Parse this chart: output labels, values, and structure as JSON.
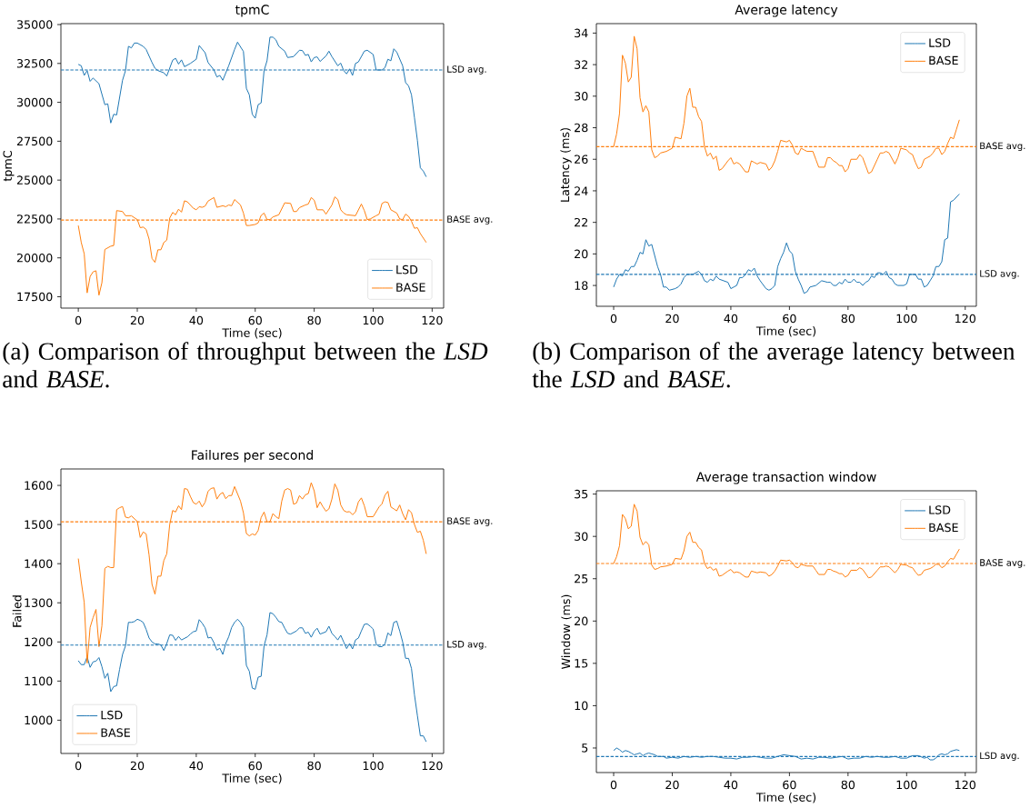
{
  "chart_data": [
    {
      "type": "line",
      "title": "tpmC",
      "xlabel": "Time (sec)",
      "ylabel": "tpmC",
      "xlim": [
        -5.9,
        123.9
      ],
      "ylim": [
        16770,
        35060
      ],
      "xticks": [
        0,
        20,
        40,
        60,
        80,
        100,
        120
      ],
      "yticks": [
        17500,
        20000,
        22500,
        25000,
        27500,
        30000,
        32500,
        35000
      ],
      "legend": "bottom right",
      "line_style": "solid",
      "marker": "none",
      "annotations": [
        "(a) Comparison of throughput between the *LSD* and *BASE*."
      ],
      "ref_lines": [
        {
          "axis": "y",
          "value": 32080,
          "label": "LSD avg.",
          "color": "#1f77b4",
          "line_style": "dashed"
        },
        {
          "axis": "y",
          "value": 22430,
          "label": "BASE avg.",
          "color": "#ff7f0e",
          "line_style": "dashed"
        }
      ],
      "series": [
        {
          "name": "LSD",
          "color": "#1f77b4",
          "x": [
            0,
            1,
            2,
            3,
            4,
            5,
            7,
            9,
            10,
            11,
            12,
            13,
            15,
            16,
            17,
            18,
            19,
            20,
            22,
            23,
            25,
            26,
            27,
            29,
            30,
            32,
            33,
            34,
            35,
            36,
            38,
            40,
            41,
            43,
            44,
            46,
            47,
            48,
            49,
            51,
            53,
            54,
            56,
            57,
            58,
            59,
            60,
            61,
            62,
            63,
            64,
            65,
            66,
            67,
            68,
            70,
            71,
            73,
            75,
            76,
            77,
            78,
            79,
            80,
            81,
            82,
            84,
            85,
            86,
            88,
            89,
            90,
            91,
            92,
            93,
            94,
            95,
            97,
            98,
            100,
            101,
            103,
            104,
            105,
            106,
            107,
            108,
            110,
            111,
            112,
            113,
            114,
            115,
            116,
            117,
            118
          ],
          "values": [
            32440,
            32350,
            31730,
            32040,
            31350,
            31560,
            31200,
            29850,
            29900,
            28670,
            29230,
            29190,
            31420,
            32040,
            33600,
            33500,
            33810,
            33810,
            33600,
            33400,
            32560,
            32190,
            32040,
            31900,
            31690,
            32710,
            32830,
            32460,
            32730,
            32290,
            32500,
            32770,
            33650,
            33190,
            32560,
            32080,
            31630,
            31730,
            31420,
            32350,
            33400,
            33870,
            33270,
            30900,
            30480,
            29230,
            28980,
            29850,
            29960,
            32040,
            32670,
            34190,
            34190,
            34020,
            33600,
            33290,
            32880,
            32940,
            33350,
            33330,
            33020,
            33080,
            32600,
            32880,
            32920,
            32630,
            32980,
            33290,
            32940,
            32350,
            32520,
            32040,
            31830,
            32150,
            31730,
            32500,
            32600,
            33290,
            33350,
            33080,
            32080,
            32080,
            32230,
            32770,
            32670,
            33440,
            33230,
            32350,
            31270,
            31060,
            30480,
            29020,
            27560,
            25790,
            25580,
            25210
          ]
        },
        {
          "name": "BASE",
          "color": "#ff7f0e",
          "x": [
            0,
            1,
            2,
            3,
            4,
            5,
            6,
            7,
            8,
            9,
            11,
            12,
            13,
            15,
            16,
            18,
            20,
            21,
            22,
            23,
            24,
            25,
            26,
            27,
            28,
            29,
            30,
            31,
            32,
            33,
            34,
            35,
            36,
            37,
            39,
            40,
            41,
            42,
            43,
            44,
            46,
            47,
            49,
            50,
            51,
            52,
            53,
            55,
            56,
            57,
            58,
            60,
            61,
            62,
            63,
            64,
            65,
            66,
            68,
            70,
            72,
            73,
            74,
            75,
            77,
            78,
            79,
            80,
            81,
            83,
            84,
            86,
            87,
            88,
            89,
            90,
            91,
            94,
            96,
            97,
            98,
            99,
            101,
            102,
            103,
            104,
            105,
            106,
            108,
            109,
            110,
            111,
            112,
            113,
            114,
            115,
            116,
            118
          ],
          "values": [
            22080,
            20990,
            20260,
            17750,
            18800,
            19100,
            19170,
            17600,
            18400,
            20540,
            20750,
            20790,
            23040,
            22980,
            22710,
            22710,
            22460,
            21940,
            21980,
            21830,
            21210,
            19960,
            19710,
            20520,
            20520,
            20990,
            21140,
            22560,
            22920,
            22770,
            23130,
            22940,
            23670,
            23600,
            23190,
            23090,
            23290,
            23250,
            23330,
            23650,
            23880,
            23250,
            23350,
            23290,
            23400,
            23350,
            23750,
            23400,
            22880,
            22080,
            22080,
            22150,
            22250,
            22730,
            22880,
            22460,
            22460,
            22630,
            22770,
            23540,
            23500,
            22980,
            22980,
            23230,
            23400,
            23460,
            23880,
            23710,
            23090,
            23090,
            22810,
            23400,
            23920,
            23750,
            23090,
            22880,
            22770,
            22710,
            23460,
            23040,
            22460,
            22500,
            22710,
            22810,
            23500,
            23600,
            23560,
            23090,
            22880,
            22500,
            22460,
            22810,
            22670,
            22350,
            21900,
            21940,
            21560,
            20990
          ]
        }
      ]
    },
    {
      "type": "line",
      "title": "Average latency",
      "xlabel": "Time (sec)",
      "ylabel": "Latency (ms)",
      "xlim": [
        -5.9,
        123.8
      ],
      "ylim": [
        16.68,
        34.6
      ],
      "xticks": [
        0,
        20,
        40,
        60,
        80,
        100,
        120
      ],
      "yticks": [
        18,
        20,
        22,
        24,
        26,
        28,
        30,
        32,
        34
      ],
      "legend": "top right",
      "line_style": "solid",
      "marker": "none",
      "annotations": [
        "(b) Comparison of the average latency between the *LSD* and *BASE*."
      ],
      "ref_lines": [
        {
          "axis": "y",
          "value": 26.8,
          "label": "BASE avg.",
          "color": "#ff7f0e",
          "line_style": "dashed"
        },
        {
          "axis": "y",
          "value": 18.7,
          "label": "LSD avg.",
          "color": "#1f77b4",
          "line_style": "dashed"
        }
      ],
      "series": [
        {
          "name": "LSD",
          "color": "#1f77b4",
          "x": [
            0,
            1,
            2,
            3,
            4,
            5,
            6,
            7,
            8,
            9,
            10,
            11,
            12,
            13,
            15,
            16,
            17,
            18,
            19,
            21,
            22,
            23,
            24,
            25,
            26,
            27,
            29,
            30,
            31,
            32,
            33,
            34,
            35,
            36,
            39,
            40,
            41,
            42,
            43,
            44,
            45,
            46,
            47,
            48,
            49,
            50,
            52,
            53,
            54,
            55,
            56,
            57,
            58,
            59,
            60,
            61,
            62,
            63,
            64,
            65,
            66,
            67,
            69,
            71,
            73,
            74,
            75,
            76,
            77,
            78,
            79,
            80,
            81,
            82,
            83,
            84,
            85,
            86,
            87,
            88,
            89,
            90,
            91,
            92,
            93,
            94,
            95,
            96,
            97,
            99,
            100,
            101,
            102,
            103,
            104,
            105,
            106,
            107,
            108,
            109,
            110,
            111,
            112,
            113,
            114,
            115,
            116,
            118
          ],
          "values": [
            17.9,
            18.4,
            18.7,
            18.6,
            19.0,
            18.9,
            19.2,
            19.2,
            19.6,
            20.1,
            20.0,
            20.9,
            20.5,
            20.6,
            19.2,
            18.7,
            17.9,
            17.9,
            17.7,
            17.8,
            17.9,
            18.1,
            18.5,
            18.7,
            18.7,
            18.7,
            18.9,
            18.7,
            18.3,
            18.2,
            18.4,
            18.3,
            18.6,
            18.4,
            18.2,
            17.8,
            17.9,
            18.0,
            18.5,
            18.5,
            18.7,
            19.0,
            18.9,
            19.1,
            18.6,
            18.3,
            17.8,
            17.7,
            17.8,
            18.0,
            19.2,
            19.7,
            20.1,
            20.7,
            20.2,
            20.0,
            18.9,
            18.4,
            18.0,
            17.5,
            17.6,
            17.9,
            18.0,
            18.3,
            18.2,
            18.2,
            18.0,
            18.0,
            18.2,
            18.1,
            18.4,
            18.2,
            18.2,
            18.4,
            18.2,
            18.2,
            18.0,
            18.2,
            18.3,
            18.6,
            18.5,
            18.8,
            18.8,
            18.7,
            18.9,
            18.5,
            18.4,
            18.1,
            18.0,
            18.0,
            18.1,
            18.7,
            18.7,
            18.7,
            18.4,
            18.4,
            17.9,
            18.0,
            18.3,
            18.6,
            19.2,
            19.2,
            19.5,
            20.9,
            21.0,
            23.3,
            23.4,
            23.8
          ]
        },
        {
          "name": "BASE",
          "color": "#ff7f0e",
          "x": [
            0,
            1,
            2,
            3,
            4,
            5,
            6,
            7,
            8,
            9,
            10,
            11,
            12,
            13,
            14,
            15,
            16,
            18,
            20,
            21,
            23,
            24,
            25,
            26,
            27,
            28,
            29,
            30,
            31,
            32,
            33,
            34,
            35,
            36,
            37,
            39,
            40,
            41,
            42,
            43,
            45,
            46,
            47,
            48,
            49,
            50,
            52,
            53,
            54,
            55,
            56,
            57,
            59,
            60,
            61,
            62,
            63,
            64,
            65,
            66,
            68,
            69,
            70,
            72,
            73,
            74,
            75,
            76,
            77,
            78,
            79,
            80,
            81,
            83,
            84,
            85,
            86,
            87,
            88,
            90,
            91,
            92,
            93,
            94,
            96,
            97,
            98,
            100,
            101,
            102,
            103,
            104,
            105,
            106,
            107,
            108,
            109,
            110,
            111,
            112,
            113,
            114,
            115,
            116,
            117,
            118
          ],
          "values": [
            26.8,
            27.6,
            28.9,
            32.6,
            32.1,
            30.9,
            31.2,
            33.8,
            33.0,
            29.9,
            29.0,
            29.4,
            29.0,
            26.6,
            26.1,
            26.2,
            26.4,
            26.5,
            26.7,
            27.4,
            27.3,
            28.3,
            30.0,
            30.5,
            29.3,
            29.3,
            28.7,
            28.4,
            26.8,
            26.2,
            26.4,
            26.0,
            26.2,
            25.3,
            25.4,
            25.9,
            26.1,
            25.7,
            25.8,
            25.7,
            25.2,
            25.2,
            25.9,
            25.8,
            25.7,
            25.8,
            25.7,
            25.3,
            25.5,
            25.9,
            26.5,
            27.2,
            27.1,
            27.2,
            26.9,
            26.4,
            26.3,
            26.7,
            26.6,
            26.5,
            26.5,
            26.0,
            25.5,
            25.5,
            26.1,
            26.1,
            25.9,
            25.8,
            25.6,
            25.6,
            25.2,
            25.4,
            26.0,
            26.0,
            26.3,
            26.1,
            25.6,
            25.1,
            25.2,
            26.0,
            26.4,
            26.4,
            26.5,
            26.4,
            25.7,
            26.1,
            26.7,
            26.6,
            26.4,
            26.3,
            25.8,
            25.4,
            25.5,
            26.0,
            26.1,
            26.2,
            26.4,
            26.7,
            26.7,
            26.3,
            26.5,
            27.0,
            27.4,
            27.3,
            27.9,
            28.5
          ]
        }
      ]
    },
    {
      "type": "line",
      "title": "Failures per second",
      "xlabel": "Time (sec)",
      "ylabel": "Failed",
      "xlim": [
        -5.9,
        123.9
      ],
      "ylim": [
        915,
        1642
      ],
      "xticks": [
        0,
        20,
        40,
        60,
        80,
        100,
        120
      ],
      "yticks": [
        1000,
        1100,
        1200,
        1300,
        1400,
        1500,
        1600
      ],
      "legend": "bottom left",
      "line_style": "solid",
      "marker": "none",
      "ref_lines": [
        {
          "axis": "y",
          "value": 1507,
          "label": "BASE avg.",
          "color": "#ff7f0e",
          "line_style": "dashed"
        },
        {
          "axis": "y",
          "value": 1192,
          "label": "LSD avg.",
          "color": "#1f77b4",
          "line_style": "dashed"
        }
      ],
      "series": [
        {
          "name": "LSD",
          "color": "#1f77b4",
          "x": [
            0,
            1,
            2,
            3,
            4,
            5,
            6,
            7,
            8,
            9,
            10,
            11,
            12,
            13,
            14,
            15,
            16,
            17,
            18,
            19,
            20,
            21,
            22,
            23,
            24,
            25,
            26,
            27,
            28,
            29,
            30,
            31,
            32,
            33,
            34,
            35,
            37,
            38,
            39,
            40,
            41,
            42,
            43,
            44,
            45,
            46,
            47,
            48,
            49,
            50,
            51,
            52,
            53,
            54,
            55,
            56,
            57,
            58,
            59,
            60,
            61,
            62,
            63,
            64,
            65,
            66,
            67,
            68,
            69,
            70,
            71,
            72,
            74,
            75,
            76,
            77,
            78,
            79,
            80,
            81,
            82,
            84,
            85,
            86,
            87,
            88,
            89,
            90,
            91,
            92,
            93,
            94,
            95,
            96,
            97,
            98,
            99,
            100,
            101,
            102,
            103,
            104,
            105,
            106,
            107,
            108,
            109,
            110,
            111,
            112,
            113,
            114,
            115,
            116,
            117,
            118
          ],
          "values": [
            1152,
            1142,
            1142,
            1162,
            1135,
            1149,
            1151,
            1160,
            1137,
            1107,
            1120,
            1073,
            1086,
            1088,
            1130,
            1168,
            1190,
            1250,
            1250,
            1252,
            1258,
            1255,
            1250,
            1232,
            1210,
            1200,
            1195,
            1195,
            1192,
            1178,
            1196,
            1218,
            1217,
            1204,
            1214,
            1205,
            1213,
            1220,
            1226,
            1228,
            1257,
            1248,
            1236,
            1210,
            1212,
            1198,
            1179,
            1184,
            1168,
            1196,
            1213,
            1237,
            1250,
            1258,
            1250,
            1237,
            1140,
            1125,
            1082,
            1079,
            1110,
            1112,
            1190,
            1218,
            1275,
            1272,
            1263,
            1252,
            1250,
            1235,
            1222,
            1220,
            1228,
            1236,
            1236,
            1222,
            1225,
            1212,
            1227,
            1235,
            1220,
            1226,
            1240,
            1222,
            1214,
            1205,
            1217,
            1200,
            1183,
            1196,
            1182,
            1205,
            1210,
            1228,
            1245,
            1246,
            1240,
            1233,
            1195,
            1188,
            1188,
            1195,
            1223,
            1216,
            1250,
            1253,
            1228,
            1200,
            1158,
            1158,
            1132,
            1065,
            1012,
            960,
            960,
            945
          ]
        },
        {
          "name": "BASE",
          "color": "#ff7f0e",
          "x": [
            0,
            1,
            2,
            3,
            4,
            5,
            6,
            7,
            8,
            9,
            10,
            11,
            12,
            13,
            14,
            15,
            16,
            17,
            18,
            20,
            21,
            22,
            23,
            24,
            25,
            26,
            27,
            28,
            29,
            30,
            31,
            32,
            33,
            34,
            35,
            36,
            37,
            38,
            39,
            40,
            41,
            42,
            43,
            44,
            45,
            46,
            47,
            48,
            49,
            50,
            51,
            52,
            53,
            55,
            56,
            57,
            58,
            59,
            60,
            61,
            62,
            63,
            64,
            65,
            66,
            67,
            68,
            69,
            70,
            71,
            72,
            73,
            74,
            75,
            76,
            77,
            78,
            79,
            80,
            81,
            82,
            83,
            84,
            85,
            86,
            87,
            88,
            89,
            90,
            91,
            92,
            93,
            94,
            95,
            96,
            97,
            98,
            99,
            100,
            102,
            103,
            104,
            105,
            106,
            107,
            108,
            109,
            110,
            111,
            112,
            113,
            114,
            115,
            116,
            117,
            118
          ],
          "values": [
            1413,
            1354,
            1301,
            1146,
            1237,
            1262,
            1283,
            1188,
            1241,
            1388,
            1393,
            1390,
            1390,
            1538,
            1543,
            1546,
            1519,
            1517,
            1522,
            1508,
            1467,
            1481,
            1476,
            1422,
            1347,
            1322,
            1368,
            1368,
            1408,
            1425,
            1500,
            1536,
            1532,
            1548,
            1538,
            1592,
            1590,
            1572,
            1556,
            1552,
            1560,
            1545,
            1557,
            1585,
            1592,
            1594,
            1565,
            1577,
            1582,
            1566,
            1574,
            1574,
            1597,
            1560,
            1530,
            1477,
            1471,
            1476,
            1473,
            1485,
            1518,
            1532,
            1507,
            1507,
            1528,
            1520,
            1515,
            1560,
            1588,
            1592,
            1588,
            1552,
            1555,
            1574,
            1565,
            1576,
            1579,
            1607,
            1586,
            1543,
            1558,
            1545,
            1534,
            1540,
            1565,
            1604,
            1588,
            1550,
            1536,
            1532,
            1533,
            1525,
            1532,
            1558,
            1568,
            1548,
            1520,
            1520,
            1520,
            1545,
            1553,
            1575,
            1585,
            1545,
            1540,
            1535,
            1550,
            1528,
            1512,
            1538,
            1530,
            1500,
            1480,
            1483,
            1460,
            1425
          ]
        }
      ]
    },
    {
      "type": "line",
      "title": "Average transaction window",
      "xlabel": "Time (sec)",
      "ylabel": "Window (ms)",
      "xlim": [
        -5.9,
        123.8
      ],
      "ylim": [
        2.1,
        35.39
      ],
      "xticks": [
        0,
        20,
        40,
        60,
        80,
        100,
        120
      ],
      "yticks": [
        5,
        10,
        15,
        20,
        25,
        30,
        35
      ],
      "legend": "top right",
      "line_style": "solid",
      "marker": "none",
      "ref_lines": [
        {
          "axis": "y",
          "value": 26.8,
          "label": "BASE avg.",
          "color": "#ff7f0e",
          "line_style": "dashed"
        },
        {
          "axis": "y",
          "value": 4.0,
          "label": "LSD avg.",
          "color": "#1f77b4",
          "line_style": "dashed"
        }
      ],
      "series": [
        {
          "name": "LSD",
          "color": "#1f77b4",
          "x": [
            0,
            1,
            2,
            3,
            4,
            5,
            6,
            7,
            8,
            9,
            10,
            11,
            12,
            13,
            14,
            15,
            17,
            18,
            20,
            22,
            24,
            26,
            28,
            30,
            32,
            34,
            36,
            38,
            40,
            42,
            44,
            46,
            48,
            50,
            52,
            54,
            56,
            58,
            60,
            62,
            64,
            66,
            68,
            70,
            72,
            74,
            76,
            78,
            80,
            82,
            84,
            86,
            88,
            90,
            92,
            94,
            96,
            98,
            100,
            102,
            104,
            106,
            107,
            108,
            109,
            110,
            111,
            112,
            113,
            114,
            115,
            116,
            117,
            118
          ],
          "values": [
            4.7,
            5.0,
            4.8,
            4.5,
            4.7,
            4.6,
            4.4,
            4.2,
            4.3,
            4.4,
            4.1,
            4.3,
            4.4,
            4.3,
            4.2,
            4.0,
            4.0,
            3.8,
            3.9,
            3.8,
            4.0,
            3.9,
            4.0,
            3.9,
            4.0,
            4.0,
            3.9,
            3.8,
            3.8,
            3.7,
            3.9,
            3.9,
            4.0,
            3.9,
            3.8,
            3.8,
            4.0,
            4.2,
            4.1,
            4.0,
            3.7,
            3.8,
            3.7,
            3.9,
            3.9,
            3.8,
            3.9,
            4.0,
            3.7,
            3.8,
            3.8,
            4.0,
            3.9,
            4.0,
            3.9,
            3.9,
            4.0,
            3.8,
            3.8,
            4.1,
            4.1,
            3.8,
            3.9,
            3.6,
            3.6,
            3.8,
            4.2,
            4.3,
            4.2,
            4.3,
            4.6,
            4.7,
            4.8,
            4.7
          ]
        },
        {
          "name": "BASE",
          "color": "#ff7f0e",
          "x": [
            0,
            1,
            2,
            3,
            4,
            5,
            6,
            7,
            8,
            9,
            10,
            11,
            12,
            13,
            14,
            15,
            16,
            18,
            20,
            21,
            23,
            24,
            25,
            26,
            27,
            28,
            29,
            30,
            31,
            32,
            33,
            34,
            35,
            36,
            37,
            39,
            40,
            41,
            42,
            43,
            45,
            46,
            47,
            48,
            49,
            50,
            52,
            53,
            54,
            55,
            56,
            57,
            59,
            60,
            61,
            62,
            63,
            64,
            65,
            66,
            68,
            69,
            70,
            72,
            73,
            74,
            75,
            76,
            77,
            78,
            79,
            80,
            81,
            83,
            84,
            85,
            86,
            87,
            88,
            90,
            91,
            92,
            93,
            94,
            96,
            97,
            98,
            100,
            101,
            102,
            103,
            104,
            105,
            106,
            107,
            108,
            109,
            110,
            111,
            112,
            113,
            114,
            115,
            116,
            117,
            118
          ],
          "values": [
            26.8,
            27.6,
            28.9,
            32.6,
            32.1,
            30.9,
            31.2,
            33.8,
            33.0,
            29.9,
            29.0,
            29.4,
            29.0,
            26.6,
            26.1,
            26.2,
            26.4,
            26.5,
            26.7,
            27.4,
            27.3,
            28.3,
            30.0,
            30.5,
            29.3,
            29.3,
            28.7,
            28.4,
            26.8,
            26.2,
            26.4,
            26.0,
            26.2,
            25.3,
            25.4,
            25.9,
            26.1,
            25.7,
            25.8,
            25.7,
            25.2,
            25.2,
            25.9,
            25.8,
            25.7,
            25.8,
            25.7,
            25.3,
            25.5,
            25.9,
            26.5,
            27.2,
            27.1,
            27.2,
            26.9,
            26.4,
            26.3,
            26.7,
            26.6,
            26.5,
            26.5,
            26.0,
            25.5,
            25.5,
            26.1,
            26.1,
            25.9,
            25.8,
            25.6,
            25.6,
            25.2,
            25.4,
            26.0,
            26.0,
            26.3,
            26.1,
            25.6,
            25.1,
            25.2,
            26.0,
            26.4,
            26.4,
            26.5,
            26.4,
            25.7,
            26.1,
            26.7,
            26.6,
            26.4,
            26.3,
            25.8,
            25.4,
            25.5,
            26.0,
            26.1,
            26.2,
            26.4,
            26.7,
            26.7,
            26.3,
            26.5,
            27.0,
            27.4,
            27.3,
            27.9,
            28.5
          ]
        }
      ]
    }
  ]
}
